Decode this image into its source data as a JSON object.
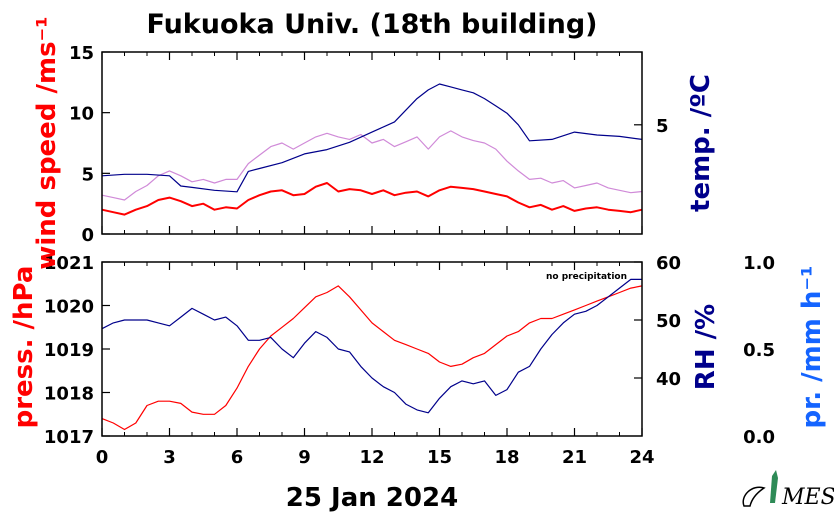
{
  "title": "Fukuoka Univ. (18th building)",
  "date_label": "25 Jan 2024",
  "logo_text": "MES",
  "colors": {
    "red": "#ff0000",
    "navy": "#00008b",
    "pink": "#d08ad8",
    "blue": "#1464ff"
  },
  "chart_data": [
    {
      "type": "line",
      "panel": "top",
      "x_range": [
        0,
        24
      ],
      "x_ticks": [
        0,
        3,
        6,
        9,
        12,
        15,
        18,
        21,
        24
      ],
      "left_axis": {
        "label": "wind speed /ms⁻¹",
        "range": [
          0,
          15
        ],
        "ticks": [
          0,
          5,
          10,
          15
        ],
        "color": "red"
      },
      "right_axis": {
        "label": "temp. /ºC",
        "range": [
          -2.5,
          10
        ],
        "ticks": [
          5
        ],
        "color": "navy"
      },
      "series": [
        {
          "kind": "wind_mean",
          "axis": "left",
          "color": "red",
          "x": [
            0,
            0.5,
            1,
            1.5,
            2,
            2.5,
            3,
            3.5,
            4,
            4.5,
            5,
            5.5,
            6,
            6.5,
            7,
            7.5,
            8,
            8.5,
            9,
            9.5,
            10,
            10.5,
            11,
            11.5,
            12,
            12.5,
            13,
            13.5,
            14,
            14.5,
            15,
            15.5,
            16,
            16.5,
            17,
            17.5,
            18,
            18.5,
            19,
            19.5,
            20,
            20.5,
            21,
            21.5,
            22,
            22.5,
            23,
            23.5,
            24
          ],
          "y": [
            2.0,
            1.8,
            1.6,
            2.0,
            2.3,
            2.8,
            3.0,
            2.7,
            2.3,
            2.5,
            2.0,
            2.2,
            2.1,
            2.8,
            3.2,
            3.5,
            3.6,
            3.2,
            3.3,
            3.9,
            4.2,
            3.5,
            3.7,
            3.6,
            3.3,
            3.6,
            3.2,
            3.4,
            3.5,
            3.1,
            3.6,
            3.9,
            3.8,
            3.7,
            3.5,
            3.3,
            3.1,
            2.6,
            2.2,
            2.4,
            2.0,
            2.3,
            1.9,
            2.1,
            2.2,
            2.0,
            1.9,
            1.8,
            2.0
          ]
        },
        {
          "kind": "wind_gust",
          "axis": "left",
          "color": "pink",
          "x": [
            0,
            0.5,
            1,
            1.5,
            2,
            2.5,
            3,
            3.5,
            4,
            4.5,
            5,
            5.5,
            6,
            6.5,
            7,
            7.5,
            8,
            8.5,
            9,
            9.5,
            10,
            10.5,
            11,
            11.5,
            12,
            12.5,
            13,
            13.5,
            14,
            14.5,
            15,
            15.5,
            16,
            16.5,
            17,
            17.5,
            18,
            18.5,
            19,
            19.5,
            20,
            20.5,
            21,
            21.5,
            22,
            22.5,
            23,
            23.5,
            24
          ],
          "y": [
            3.2,
            3.0,
            2.8,
            3.5,
            4.0,
            4.8,
            5.2,
            4.8,
            4.3,
            4.5,
            4.2,
            4.5,
            4.5,
            5.8,
            6.5,
            7.2,
            7.5,
            7.0,
            7.5,
            8.0,
            8.3,
            8.0,
            7.8,
            8.2,
            7.5,
            7.8,
            7.2,
            7.6,
            8.0,
            7.0,
            8.0,
            8.5,
            8.0,
            7.7,
            7.5,
            7.0,
            6.0,
            5.2,
            4.5,
            4.6,
            4.2,
            4.4,
            3.8,
            4.0,
            4.2,
            3.8,
            3.6,
            3.4,
            3.5
          ]
        },
        {
          "kind": "temperature",
          "axis": "right",
          "color": "navy",
          "x": [
            0,
            1,
            2,
            3,
            3.5,
            4,
            5,
            6,
            6.5,
            7,
            8,
            9,
            10,
            11,
            12,
            13,
            13.5,
            14,
            14.5,
            15,
            15.5,
            16,
            16.5,
            17,
            17.5,
            18,
            18.5,
            19,
            20,
            21,
            22,
            23,
            24
          ],
          "y": [
            1.5,
            1.6,
            1.6,
            1.5,
            0.8,
            0.7,
            0.5,
            0.4,
            1.8,
            2.0,
            2.4,
            3.0,
            3.3,
            3.8,
            4.5,
            5.2,
            6.0,
            6.8,
            7.4,
            7.8,
            7.6,
            7.4,
            7.2,
            6.8,
            6.3,
            5.8,
            5.0,
            3.9,
            4.0,
            4.5,
            4.3,
            4.2,
            4.0
          ]
        }
      ]
    },
    {
      "type": "line",
      "panel": "bottom",
      "x_range": [
        0,
        24
      ],
      "x_ticks": [
        0,
        3,
        6,
        9,
        12,
        15,
        18,
        21,
        24
      ],
      "x_tick_labels": [
        "0",
        "3",
        "6",
        "9",
        "12",
        "15",
        "18",
        "21",
        "24"
      ],
      "left_axis": {
        "label": "press. /hPa",
        "range": [
          1017,
          1021
        ],
        "ticks": [
          1017,
          1018,
          1019,
          1020,
          1021
        ],
        "color": "red"
      },
      "right_axis": {
        "label": "RH /%",
        "range": [
          30,
          60
        ],
        "ticks": [
          40,
          50,
          60
        ],
        "color": "navy"
      },
      "far_right_axis": {
        "label": "pr. /mm h⁻¹",
        "range": [
          0,
          1
        ],
        "ticks": [
          "0.0",
          "0.5",
          "1.0"
        ],
        "color": "blue"
      },
      "annotation": "no precipitation",
      "series": [
        {
          "kind": "pressure",
          "axis": "left",
          "color": "red",
          "x": [
            0,
            0.5,
            1,
            1.5,
            2,
            2.5,
            3,
            3.5,
            4,
            4.5,
            5,
            5.5,
            6,
            6.5,
            7,
            7.5,
            8,
            8.5,
            9,
            9.5,
            10,
            10.5,
            11,
            11.5,
            12,
            12.5,
            13,
            13.5,
            14,
            14.5,
            15,
            15.5,
            16,
            16.5,
            17,
            17.5,
            18,
            18.5,
            19,
            19.5,
            20,
            20.5,
            21,
            21.5,
            22,
            22.5,
            23,
            23.5,
            24
          ],
          "y": [
            1017.4,
            1017.3,
            1017.15,
            1017.3,
            1017.7,
            1017.8,
            1017.8,
            1017.75,
            1017.55,
            1017.5,
            1017.5,
            1017.7,
            1018.1,
            1018.6,
            1019.0,
            1019.3,
            1019.5,
            1019.7,
            1019.95,
            1020.2,
            1020.3,
            1020.45,
            1020.2,
            1019.9,
            1019.6,
            1019.4,
            1019.2,
            1019.1,
            1019.0,
            1018.9,
            1018.7,
            1018.6,
            1018.65,
            1018.8,
            1018.9,
            1019.1,
            1019.3,
            1019.4,
            1019.6,
            1019.7,
            1019.7,
            1019.8,
            1019.9,
            1020.0,
            1020.1,
            1020.2,
            1020.3,
            1020.4,
            1020.45
          ]
        },
        {
          "kind": "relative_humidity",
          "axis": "right",
          "color": "navy",
          "x": [
            0,
            0.5,
            1,
            1.5,
            2,
            2.5,
            3,
            3.5,
            4,
            4.5,
            5,
            5.5,
            6,
            6.5,
            7,
            7.5,
            8,
            8.5,
            9,
            9.5,
            10,
            10.5,
            11,
            11.5,
            12,
            12.5,
            13,
            13.5,
            14,
            14.5,
            15,
            15.5,
            16,
            16.5,
            17,
            17.5,
            18,
            18.5,
            19,
            19.5,
            20,
            20.5,
            21,
            21.5,
            22,
            22.5,
            23,
            23.5,
            24
          ],
          "y": [
            48.5,
            49.5,
            50.0,
            50.0,
            50.0,
            49.5,
            49.0,
            50.5,
            52.0,
            51.0,
            50.0,
            50.5,
            49.0,
            46.5,
            46.5,
            47.0,
            45.0,
            43.5,
            46.0,
            48.0,
            47.0,
            45.0,
            44.5,
            42.0,
            40.0,
            38.5,
            37.5,
            35.5,
            34.5,
            34.0,
            36.5,
            38.5,
            39.5,
            39.0,
            39.5,
            37.0,
            38.0,
            41.0,
            42.0,
            45.0,
            47.5,
            49.5,
            51.0,
            51.5,
            52.5,
            54.0,
            55.5,
            57.0,
            57.0
          ]
        }
      ]
    }
  ]
}
